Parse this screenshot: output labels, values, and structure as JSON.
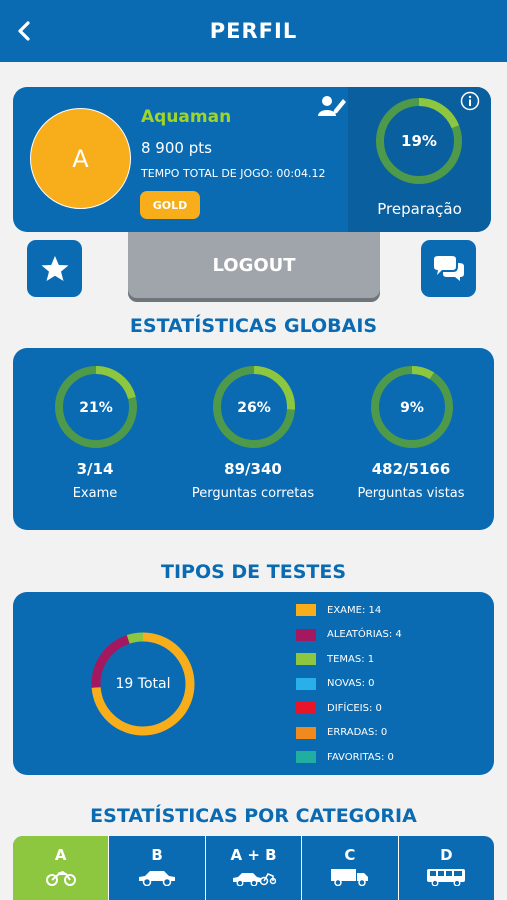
{
  "header": {
    "title": "PERFIL"
  },
  "profile": {
    "avatar_letter": "A",
    "name": "Aquaman",
    "points": "8 900 pts",
    "total_time": "TEMPO TOTAL DE JOGO: 00:04.12",
    "badge": "GOLD",
    "preparation_percent_text": "19%",
    "preparation_percent": 19,
    "preparation_label": "Preparação"
  },
  "actions": {
    "logout_label": "LOGOUT"
  },
  "global_stats": {
    "title": "ESTATÍSTICAS GLOBAIS",
    "items": [
      {
        "percent_text": "21%",
        "percent": 21,
        "value": "3/14",
        "label": "Exame"
      },
      {
        "percent_text": "26%",
        "percent": 26,
        "value": "89/340",
        "label": "Perguntas corretas"
      },
      {
        "percent_text": "9%",
        "percent": 9,
        "value": "482/5166",
        "label": "Perguntas vistas"
      }
    ]
  },
  "test_types": {
    "title": "TIPOS DE TESTES",
    "total_label": "19 Total",
    "legend": [
      {
        "label": "EXAME: 14",
        "color": "#f8ad1a",
        "count": 14
      },
      {
        "label": "ALEATÓRIAS: 4",
        "color": "#a3185f",
        "count": 4
      },
      {
        "label": "TEMAS: 1",
        "color": "#8dc63f",
        "count": 1
      },
      {
        "label": "NOVAS: 0",
        "color": "#2ab0e8",
        "count": 0
      },
      {
        "label": "DIFÍCEIS: 0",
        "color": "#e8152a",
        "count": 0
      },
      {
        "label": "ERRADAS: 0",
        "color": "#f08a1c",
        "count": 0
      },
      {
        "label": "FAVORITAS: 0",
        "color": "#1fae9f",
        "count": 0
      }
    ]
  },
  "categories": {
    "title": "ESTATÍSTICAS POR CATEGORIA",
    "tabs": [
      {
        "label": "A",
        "icon": "motorcycle-icon",
        "active": true
      },
      {
        "label": "B",
        "icon": "car-icon",
        "active": false
      },
      {
        "label": "A + B",
        "icon": "car-motorcycle-icon",
        "active": false
      },
      {
        "label": "C",
        "icon": "truck-icon",
        "active": false
      },
      {
        "label": "D",
        "icon": "bus-icon",
        "active": false
      }
    ]
  },
  "colors": {
    "primary": "#0a6bb3",
    "accent_green": "#8dc63f",
    "ring_track": "#4e9a4a",
    "gold": "#f8ad1a"
  }
}
